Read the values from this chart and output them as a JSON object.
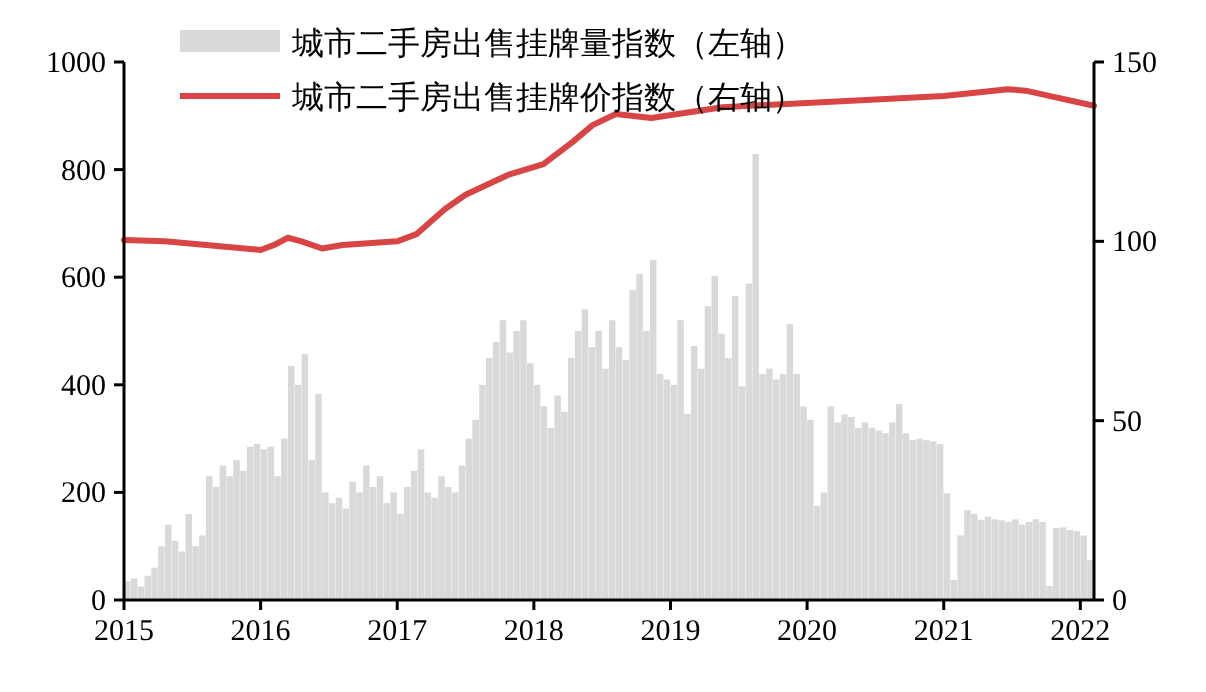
{
  "chart_data": {
    "type": "bar",
    "xlim": [
      2015,
      2022.1
    ],
    "xticks": [
      2015,
      2016,
      2017,
      2018,
      2019,
      2020,
      2021,
      2022
    ],
    "ylim": [
      0,
      1000
    ],
    "yticks": [
      0,
      200,
      400,
      600,
      800,
      1000
    ],
    "y2lim": [
      0,
      150
    ],
    "y2ticks": [
      0,
      50,
      100,
      150
    ],
    "legend": "top left",
    "grid": false,
    "series": [
      {
        "name": "城市二手房出售挂牌量指数（左轴）",
        "color": "#d9d9d9",
        "x": [
          2015.0,
          2015.05,
          2015.1,
          2015.15,
          2015.2,
          2015.25,
          2015.3,
          2015.35,
          2015.4,
          2015.45,
          2015.5,
          2015.55,
          2015.6,
          2015.65,
          2015.7,
          2015.75,
          2015.8,
          2015.85,
          2015.9,
          2015.95,
          2016.0,
          2016.05,
          2016.1,
          2016.15,
          2016.2,
          2016.25,
          2016.3,
          2016.35,
          2016.4,
          2016.45,
          2016.5,
          2016.55,
          2016.6,
          2016.65,
          2016.7,
          2016.75,
          2016.8,
          2016.85,
          2016.9,
          2016.95,
          2017.0,
          2017.05,
          2017.1,
          2017.15,
          2017.2,
          2017.25,
          2017.3,
          2017.35,
          2017.4,
          2017.45,
          2017.5,
          2017.55,
          2017.6,
          2017.65,
          2017.7,
          2017.75,
          2017.8,
          2017.85,
          2017.9,
          2017.95,
          2018.0,
          2018.05,
          2018.1,
          2018.15,
          2018.2,
          2018.25,
          2018.3,
          2018.35,
          2018.4,
          2018.45,
          2018.5,
          2018.55,
          2018.6,
          2018.65,
          2018.7,
          2018.75,
          2018.8,
          2018.85,
          2018.9,
          2018.95,
          2019.0,
          2019.05,
          2019.1,
          2019.15,
          2019.2,
          2019.25,
          2019.3,
          2019.35,
          2019.4,
          2019.45,
          2019.5,
          2019.55,
          2019.6,
          2019.65,
          2019.7,
          2019.75,
          2019.8,
          2019.85,
          2019.9,
          2019.95,
          2020.0,
          2020.05,
          2020.1,
          2020.15,
          2020.2,
          2020.25,
          2020.3,
          2020.35,
          2020.4,
          2020.45,
          2020.5,
          2020.55,
          2020.6,
          2020.65,
          2020.7,
          2020.75,
          2020.8,
          2020.85,
          2020.9,
          2020.95,
          2021.0,
          2021.05,
          2021.1,
          2021.15,
          2021.2,
          2021.25,
          2021.3,
          2021.35,
          2021.4,
          2021.45,
          2021.5,
          2021.55,
          2021.6,
          2021.65,
          2021.7,
          2021.75,
          2021.8,
          2021.85,
          2021.9,
          2021.95,
          2022.0,
          2022.05
        ],
        "values": [
          35,
          40,
          25,
          45,
          60,
          100,
          140,
          110,
          90,
          160,
          100,
          120,
          230,
          210,
          250,
          230,
          260,
          240,
          285,
          290,
          280,
          285,
          230,
          300,
          435,
          400,
          457,
          260,
          383,
          200,
          180,
          190,
          170,
          220,
          200,
          250,
          210,
          230,
          180,
          200,
          160,
          210,
          240,
          280,
          200,
          190,
          230,
          210,
          200,
          250,
          300,
          335,
          400,
          450,
          480,
          520,
          460,
          500,
          520,
          440,
          400,
          360,
          320,
          380,
          350,
          450,
          500,
          540,
          470,
          500,
          430,
          520,
          470,
          446,
          576,
          606,
          500,
          632,
          420,
          410,
          400,
          520,
          346,
          472,
          430,
          546,
          602,
          495,
          450,
          565,
          397,
          588,
          829,
          420,
          430,
          410,
          420,
          513,
          420,
          360,
          335,
          175,
          200,
          360,
          330,
          345,
          340,
          320,
          330,
          320,
          315,
          310,
          330,
          364,
          310,
          297,
          300,
          297,
          295,
          290,
          198,
          37,
          120,
          167,
          160,
          149,
          155,
          150,
          148,
          145,
          150,
          140,
          145,
          150,
          145,
          26,
          134,
          135,
          130,
          128,
          120,
          74
        ]
      },
      {
        "name": "城市二手房出售挂牌价指数（右轴）",
        "type": "line",
        "axis": "y2",
        "color": "#d94545",
        "x": [
          2015.0,
          2015.3,
          2015.6,
          2016.0,
          2016.1,
          2016.2,
          2016.3,
          2016.45,
          2016.6,
          2017.0,
          2017.14,
          2017.35,
          2017.5,
          2017.81,
          2018.07,
          2018.28,
          2018.43,
          2018.6,
          2018.86,
          2019.38,
          2020.43,
          2021.0,
          2021.47,
          2021.6,
          2021.78,
          2022.1
        ],
        "values": [
          100.4,
          100,
          99,
          97.6,
          99,
          101,
          100,
          98,
          99,
          100,
          102,
          109,
          113,
          118.5,
          121.5,
          127.6,
          132.4,
          135.5,
          134.4,
          137.4,
          139.4,
          140.5,
          142.4,
          142,
          140.5,
          137.8
        ]
      }
    ]
  }
}
